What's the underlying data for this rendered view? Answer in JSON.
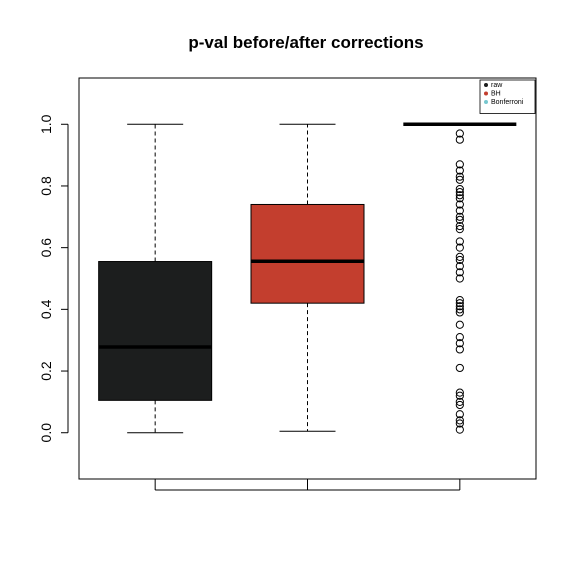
{
  "chart_data": {
    "type": "boxplot",
    "title": "p-val before/after corrections",
    "xlabel": "",
    "ylabel": "",
    "ylim": [
      -0.15,
      1.15
    ],
    "y_ticks": [
      "0.0",
      "0.2",
      "0.4",
      "0.6",
      "0.8",
      "1.0"
    ],
    "grid": false,
    "legend_position": "top-right",
    "series": [
      {
        "name": "raw",
        "color": "#1c1e1e",
        "whisker_low": 0.0,
        "q1": 0.105,
        "median": 0.278,
        "q3": 0.555,
        "whisker_high": 1.0,
        "outliers": []
      },
      {
        "name": "BH",
        "color": "#c33e2e",
        "whisker_low": 0.005,
        "q1": 0.42,
        "median": 0.556,
        "q3": 0.74,
        "whisker_high": 1.0,
        "outliers": []
      },
      {
        "name": "Bonferroni",
        "color": "#76c7cf",
        "whisker_low": 1.0,
        "q1": 1.0,
        "median": 1.0,
        "q3": 1.0,
        "whisker_high": 1.0,
        "outliers": [
          0.97,
          0.95,
          0.87,
          0.85,
          0.83,
          0.82,
          0.79,
          0.78,
          0.77,
          0.76,
          0.74,
          0.72,
          0.7,
          0.69,
          0.67,
          0.66,
          0.62,
          0.6,
          0.57,
          0.56,
          0.54,
          0.52,
          0.5,
          0.43,
          0.42,
          0.41,
          0.4,
          0.39,
          0.35,
          0.31,
          0.29,
          0.27,
          0.21,
          0.13,
          0.12,
          0.1,
          0.09,
          0.06,
          0.04,
          0.03,
          0.01
        ]
      }
    ]
  }
}
